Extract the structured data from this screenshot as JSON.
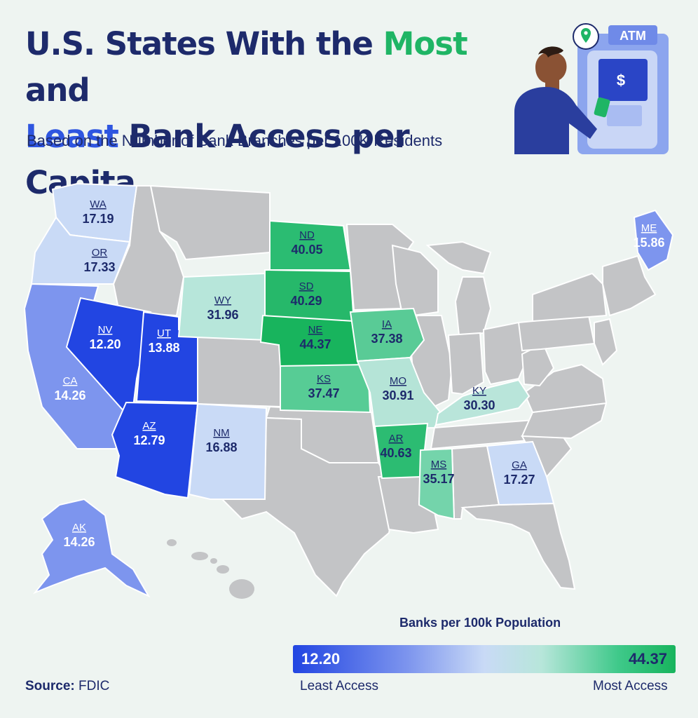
{
  "title": {
    "part1": "U.S. States With the ",
    "most": "Most",
    "part2": " and",
    "least": "Least",
    "part3": " Bank Access per Capita"
  },
  "subtitle": "Based on the Number of Bank Branches per 100K Residents",
  "illustration": {
    "atm_label": "ATM",
    "dollar_sign": "$",
    "icons": [
      "person-icon",
      "atm-icon",
      "location-pin-icon",
      "credit-card-icon"
    ]
  },
  "states": [
    {
      "abbr": "WA",
      "value": "17.19"
    },
    {
      "abbr": "OR",
      "value": "17.33"
    },
    {
      "abbr": "CA",
      "value": "14.26"
    },
    {
      "abbr": "NV",
      "value": "12.20"
    },
    {
      "abbr": "UT",
      "value": "13.88"
    },
    {
      "abbr": "AZ",
      "value": "12.79"
    },
    {
      "abbr": "WY",
      "value": "31.96"
    },
    {
      "abbr": "NM",
      "value": "16.88"
    },
    {
      "abbr": "ND",
      "value": "40.05"
    },
    {
      "abbr": "SD",
      "value": "40.29"
    },
    {
      "abbr": "NE",
      "value": "44.37"
    },
    {
      "abbr": "KS",
      "value": "37.47"
    },
    {
      "abbr": "IA",
      "value": "37.38"
    },
    {
      "abbr": "MO",
      "value": "30.91"
    },
    {
      "abbr": "AR",
      "value": "40.63"
    },
    {
      "abbr": "MS",
      "value": "35.17"
    },
    {
      "abbr": "KY",
      "value": "30.30"
    },
    {
      "abbr": "GA",
      "value": "17.27"
    },
    {
      "abbr": "ME",
      "value": "15.86"
    },
    {
      "abbr": "AK",
      "value": "14.26"
    }
  ],
  "legend": {
    "title": "Banks per 100k Population",
    "min": "12.20",
    "max": "44.37",
    "low_label": "Least Access",
    "high_label": "Most Access"
  },
  "source": {
    "label": "Source:",
    "value": "FDIC"
  },
  "colors": {
    "background": "#eef4f1",
    "navy": "#1d2a6b",
    "most_green": "#1fb565",
    "least_blue": "#2f56e0",
    "no_data_gray": "#c3c4c6"
  }
}
